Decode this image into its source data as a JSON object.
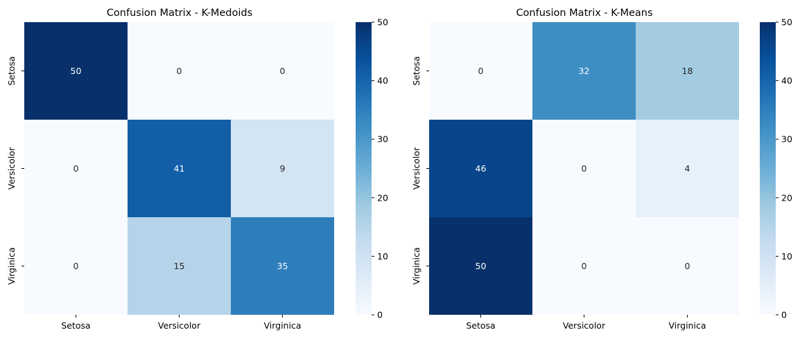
{
  "chart_data": [
    {
      "type": "heatmap",
      "title": "Confusion Matrix - K-Medoids",
      "row_labels": [
        "Setosa",
        "Versicolor",
        "Virginica"
      ],
      "col_labels": [
        "Setosa",
        "Versicolor",
        "Virginica"
      ],
      "values": [
        [
          50,
          0,
          0
        ],
        [
          0,
          41,
          9
        ],
        [
          0,
          15,
          35
        ]
      ],
      "colorbar": {
        "min": 0,
        "max": 50,
        "ticks": [
          0,
          10,
          20,
          30,
          40,
          50
        ]
      },
      "colormap": "Blues"
    },
    {
      "type": "heatmap",
      "title": "Confusion Matrix - K-Means",
      "row_labels": [
        "Setosa",
        "Versicolor",
        "Virginica"
      ],
      "col_labels": [
        "Setosa",
        "Versicolor",
        "Virginica"
      ],
      "values": [
        [
          0,
          32,
          18
        ],
        [
          46,
          0,
          4
        ],
        [
          50,
          0,
          0
        ]
      ],
      "colorbar": {
        "min": 0,
        "max": 50,
        "ticks": [
          0,
          10,
          20,
          30,
          40,
          50
        ]
      },
      "colormap": "Blues"
    }
  ]
}
